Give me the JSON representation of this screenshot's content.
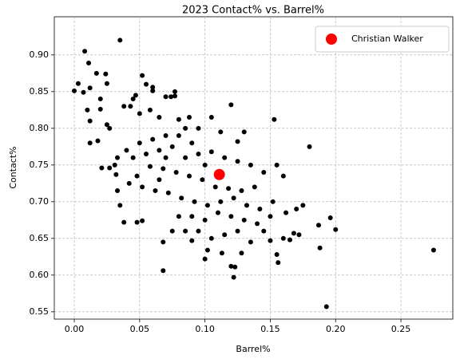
{
  "chart_data": {
    "type": "scatter",
    "title": "2023 Contact% vs. Barrel%",
    "x_label": "Barrel%",
    "y_label": "Contact%",
    "xlim": [
      -0.0153,
      0.2897
    ],
    "ylim": [
      0.54,
      0.952
    ],
    "xticks": [
      {
        "value": 0,
        "label": "0.00"
      },
      {
        "value": 0.05,
        "label": "0.05"
      },
      {
        "value": 0.1,
        "label": "0.10"
      },
      {
        "value": 0.15,
        "label": "0.15"
      },
      {
        "value": 0.2,
        "label": "0.20"
      },
      {
        "value": 0.25,
        "label": "0.25"
      }
    ],
    "yticks": [
      {
        "value": 0.55,
        "label": "0.55"
      },
      {
        "value": 0.6,
        "label": "0.60"
      },
      {
        "value": 0.65,
        "label": "0.65"
      },
      {
        "value": 0.7,
        "label": "0.70"
      },
      {
        "value": 0.75,
        "label": "0.75"
      },
      {
        "value": 0.8,
        "label": "0.80"
      },
      {
        "value": 0.85,
        "label": "0.85"
      },
      {
        "value": 0.9,
        "label": "0.90"
      }
    ],
    "grid": true,
    "legend": "upper right",
    "series": [
      {
        "color": "#000000",
        "x": [
          0.035,
          0.008,
          0.011,
          0.003,
          0.0,
          0.007,
          0.012,
          0.017,
          0.024,
          0.025,
          0.01,
          0.012,
          0.012,
          0.018,
          0.02,
          0.02,
          0.021,
          0.025,
          0.027,
          0.027,
          0.031,
          0.033,
          0.032,
          0.033,
          0.035,
          0.038,
          0.048,
          0.052,
          0.068,
          0.068,
          0.09,
          0.1,
          0.102,
          0.113,
          0.12,
          0.123,
          0.122,
          0.128,
          0.15,
          0.155,
          0.156,
          0.16,
          0.165,
          0.168,
          0.172,
          0.187,
          0.188,
          0.193,
          0.196,
          0.2,
          0.275,
          0.18,
          0.153,
          0.12,
          0.052,
          0.055,
          0.06,
          0.06,
          0.077,
          0.077,
          0.074,
          0.07,
          0.047,
          0.045,
          0.043,
          0.038,
          0.05,
          0.058,
          0.065,
          0.08,
          0.088,
          0.105,
          0.112,
          0.13,
          0.125,
          0.095,
          0.085,
          0.07,
          0.06,
          0.05,
          0.04,
          0.045,
          0.055,
          0.065,
          0.075,
          0.085,
          0.095,
          0.105,
          0.115,
          0.125,
          0.135,
          0.145,
          0.155,
          0.16,
          0.138,
          0.128,
          0.118,
          0.108,
          0.098,
          0.088,
          0.078,
          0.068,
          0.058,
          0.048,
          0.042,
          0.052,
          0.062,
          0.072,
          0.082,
          0.092,
          0.102,
          0.112,
          0.122,
          0.132,
          0.142,
          0.152,
          0.162,
          0.17,
          0.175,
          0.15,
          0.14,
          0.13,
          0.12,
          0.11,
          0.1,
          0.09,
          0.08,
          0.075,
          0.085,
          0.095,
          0.105,
          0.115,
          0.125,
          0.135,
          0.145,
          0.065,
          0.07,
          0.08,
          0.09,
          0.1
        ],
        "values": [
          0.92,
          0.905,
          0.889,
          0.861,
          0.851,
          0.849,
          0.855,
          0.875,
          0.874,
          0.861,
          0.825,
          0.81,
          0.78,
          0.783,
          0.84,
          0.826,
          0.746,
          0.805,
          0.8,
          0.746,
          0.75,
          0.76,
          0.737,
          0.715,
          0.695,
          0.672,
          0.672,
          0.674,
          0.645,
          0.606,
          0.647,
          0.622,
          0.634,
          0.63,
          0.612,
          0.611,
          0.597,
          0.63,
          0.647,
          0.628,
          0.617,
          0.65,
          0.648,
          0.657,
          0.655,
          0.668,
          0.637,
          0.557,
          0.678,
          0.662,
          0.634,
          0.775,
          0.812,
          0.832,
          0.872,
          0.86,
          0.856,
          0.851,
          0.85,
          0.844,
          0.843,
          0.843,
          0.845,
          0.84,
          0.83,
          0.83,
          0.82,
          0.825,
          0.815,
          0.812,
          0.815,
          0.815,
          0.795,
          0.795,
          0.782,
          0.8,
          0.8,
          0.79,
          0.785,
          0.78,
          0.77,
          0.76,
          0.765,
          0.77,
          0.775,
          0.76,
          0.765,
          0.768,
          0.76,
          0.755,
          0.75,
          0.74,
          0.75,
          0.735,
          0.72,
          0.715,
          0.718,
          0.72,
          0.73,
          0.735,
          0.74,
          0.745,
          0.748,
          0.735,
          0.725,
          0.72,
          0.715,
          0.712,
          0.705,
          0.7,
          0.695,
          0.7,
          0.705,
          0.695,
          0.69,
          0.7,
          0.685,
          0.69,
          0.695,
          0.68,
          0.67,
          0.675,
          0.68,
          0.685,
          0.675,
          0.68,
          0.68,
          0.66,
          0.66,
          0.66,
          0.65,
          0.655,
          0.66,
          0.645,
          0.66,
          0.73,
          0.76,
          0.79,
          0.78,
          0.75
        ]
      },
      {
        "name": "Christian Walker",
        "color": "#ff0000",
        "x": [
          0.111
        ],
        "values": [
          0.737
        ]
      }
    ]
  }
}
